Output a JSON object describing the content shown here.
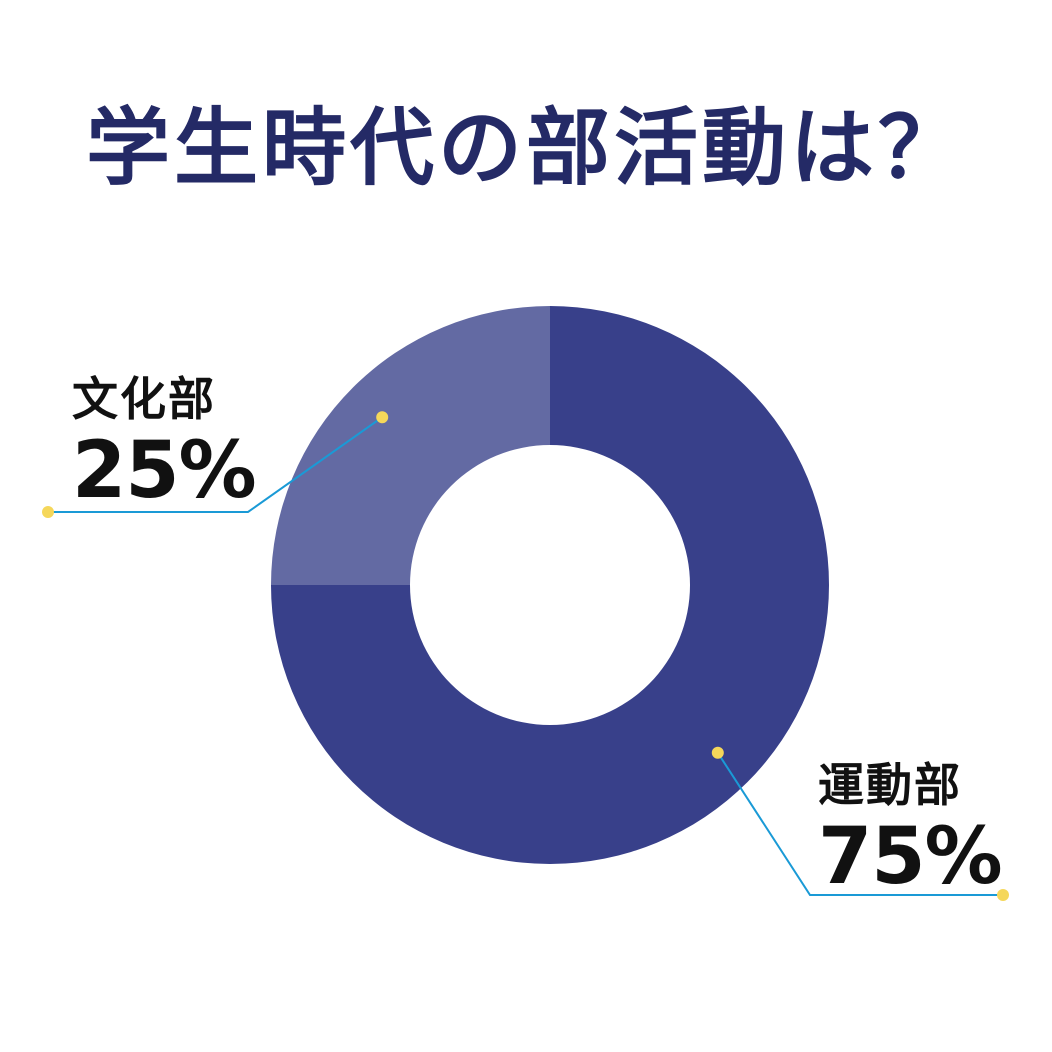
{
  "chart_data": {
    "type": "pie",
    "style": "donut",
    "title": "学生時代の部活動は？",
    "categories": [
      "運動部",
      "文化部"
    ],
    "values": [
      75,
      25
    ],
    "value_labels": [
      "75%",
      "25%"
    ],
    "colors": [
      "#38408a",
      "#636aa3"
    ],
    "leader_color": "#1a9ad6",
    "dot_color": "#f5d75a",
    "title_color": "#242a66"
  }
}
